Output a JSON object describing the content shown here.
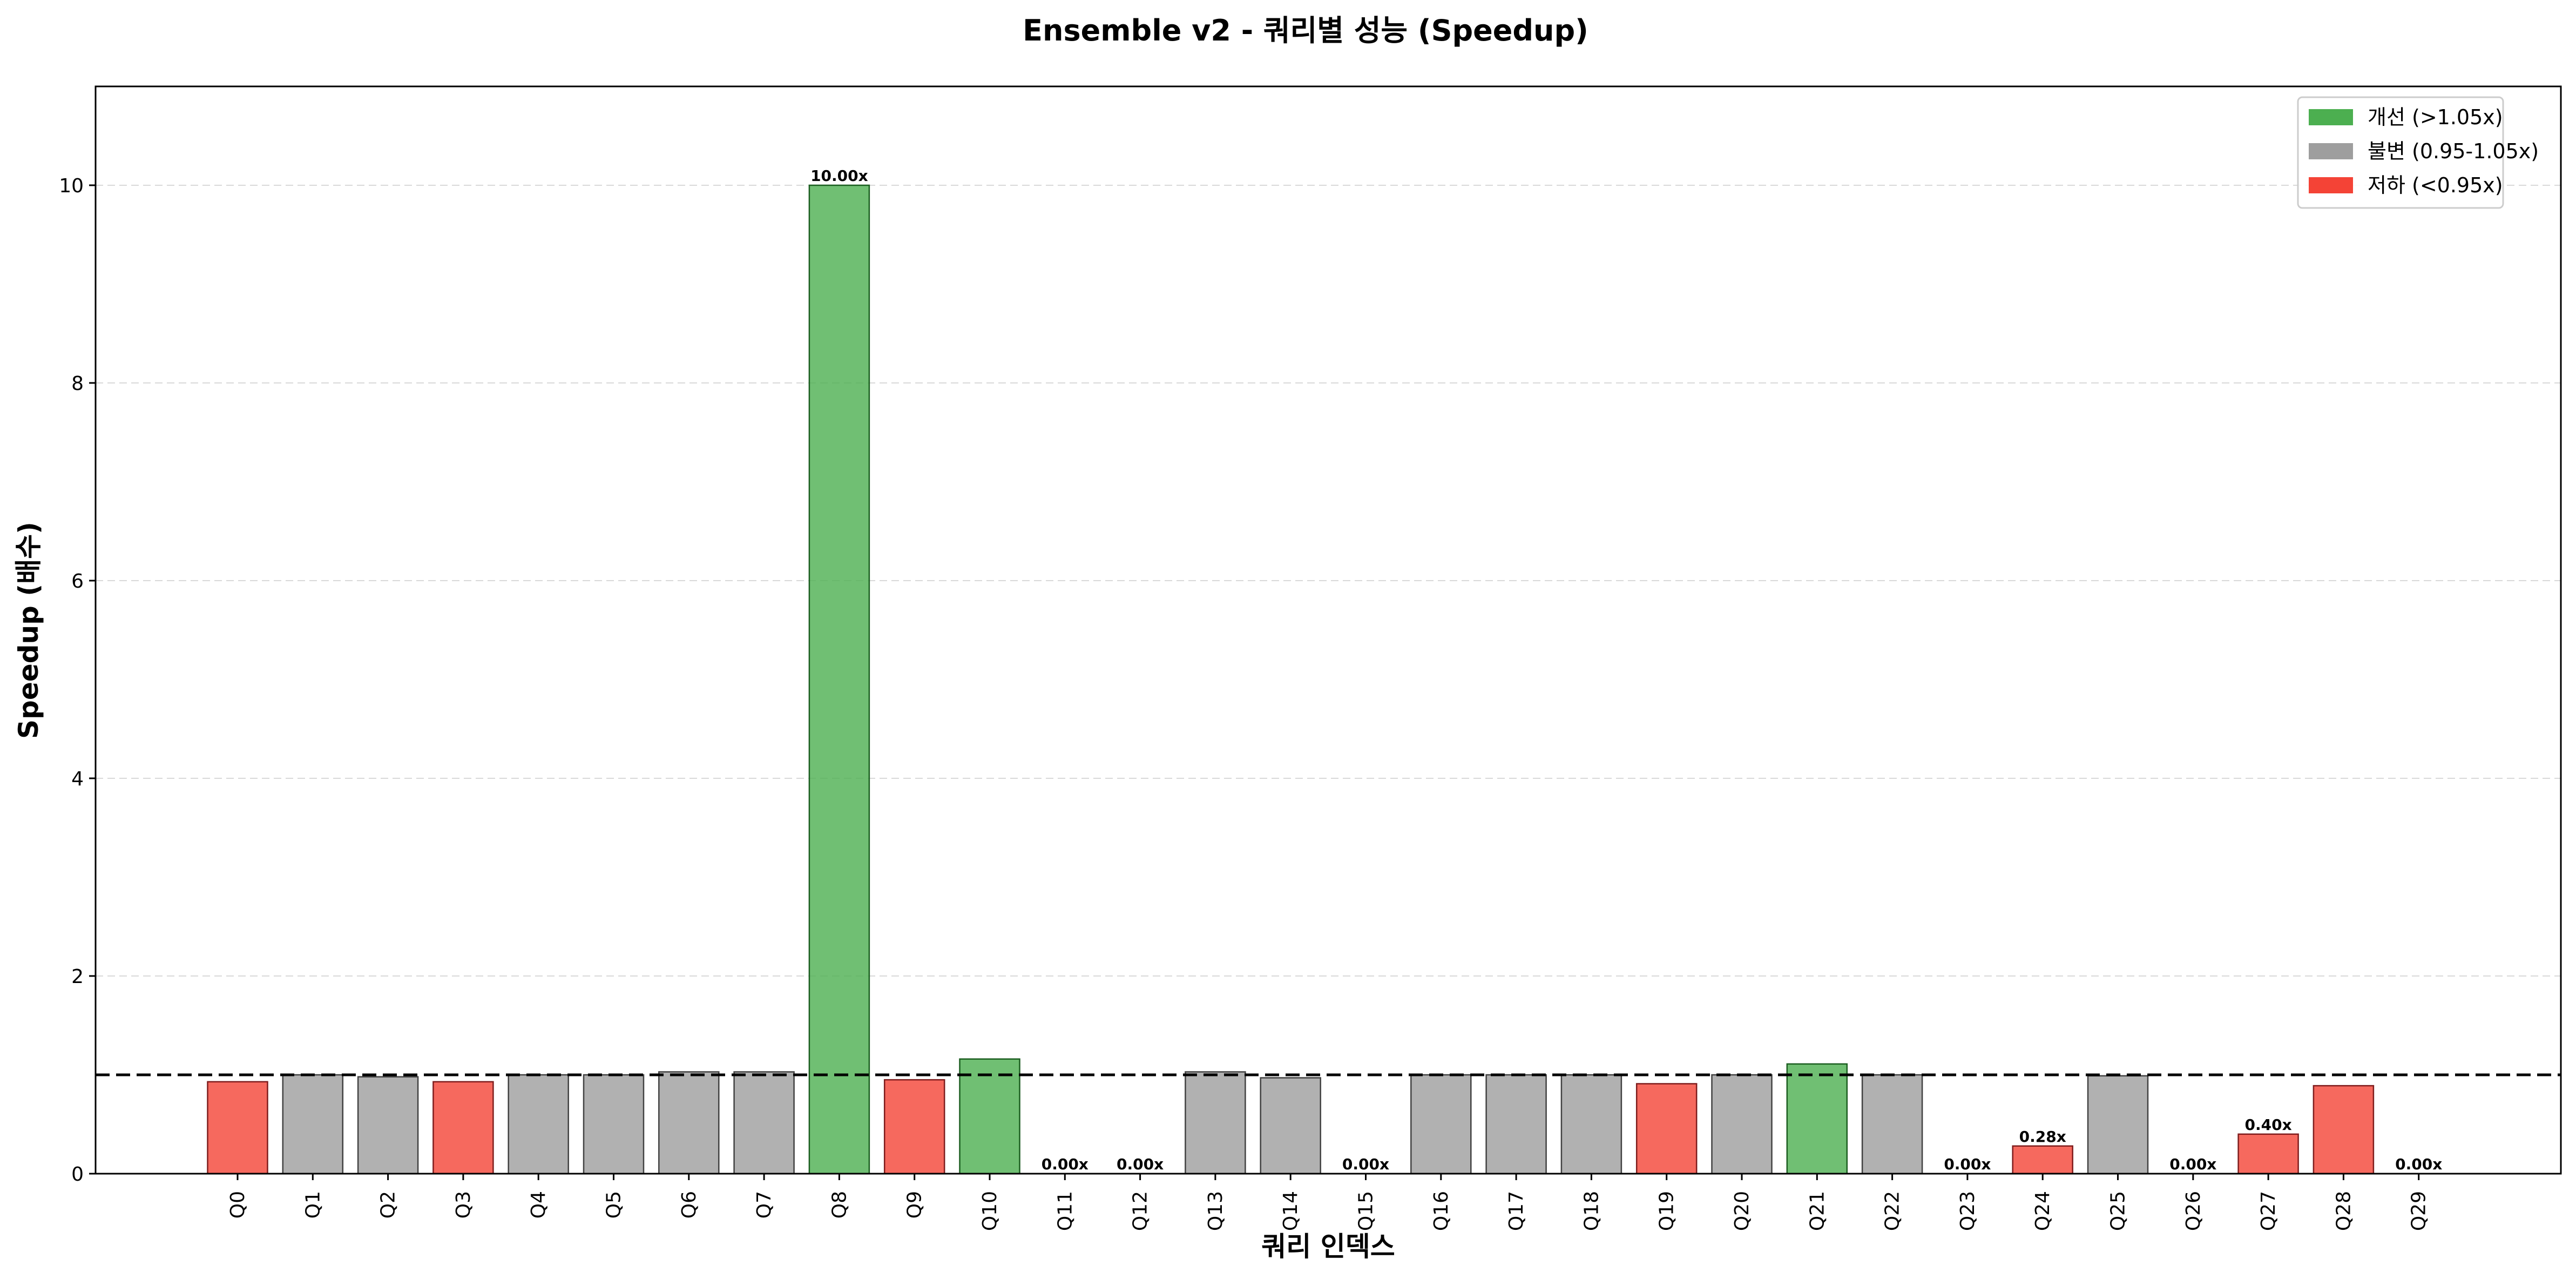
{
  "chart_data": {
    "type": "bar",
    "title": "Ensemble v2 - 쿼리별 성능 (Speedup)",
    "xlabel": "쿼리 인덱스",
    "ylabel": "Speedup (배수)",
    "ylim": [
      0,
      11
    ],
    "y_ticks": [
      0,
      2,
      4,
      6,
      8,
      10
    ],
    "y_tick_labels": [
      "0",
      "2",
      "4",
      "6",
      "8",
      "10"
    ],
    "grid": "y-dashed",
    "baseline": 1.0,
    "legend_position": "top-right",
    "categories": [
      "Q0",
      "Q1",
      "Q2",
      "Q3",
      "Q4",
      "Q5",
      "Q6",
      "Q7",
      "Q8",
      "Q9",
      "Q10",
      "Q11",
      "Q12",
      "Q13",
      "Q14",
      "Q15",
      "Q16",
      "Q17",
      "Q18",
      "Q19",
      "Q20",
      "Q21",
      "Q22",
      "Q23",
      "Q24",
      "Q25",
      "Q26",
      "Q27",
      "Q28",
      "Q29"
    ],
    "values": [
      0.93,
      1.0,
      0.98,
      0.93,
      1.0,
      1.0,
      1.03,
      1.03,
      10.0,
      0.95,
      1.16,
      0.0,
      0.0,
      1.03,
      0.97,
      0.0,
      1.0,
      1.0,
      1.0,
      0.91,
      1.0,
      1.11,
      1.0,
      0.0,
      0.28,
      0.99,
      0.0,
      0.4,
      0.89,
      0.0
    ],
    "bar_class": [
      "degraded",
      "unchanged",
      "unchanged",
      "degraded",
      "unchanged",
      "unchanged",
      "unchanged",
      "unchanged",
      "improved",
      "degraded",
      "improved",
      "degraded",
      "degraded",
      "unchanged",
      "unchanged",
      "degraded",
      "unchanged",
      "unchanged",
      "unchanged",
      "degraded",
      "unchanged",
      "improved",
      "unchanged",
      "degraded",
      "degraded",
      "unchanged",
      "degraded",
      "degraded",
      "degraded",
      "degraded"
    ],
    "data_labels": [
      {
        "index": 8,
        "text": "10.00x"
      },
      {
        "index": 11,
        "text": "0.00x"
      },
      {
        "index": 12,
        "text": "0.00x"
      },
      {
        "index": 15,
        "text": "0.00x"
      },
      {
        "index": 23,
        "text": "0.00x"
      },
      {
        "index": 24,
        "text": "0.28x"
      },
      {
        "index": 26,
        "text": "0.00x"
      },
      {
        "index": 27,
        "text": "0.40x"
      },
      {
        "index": 29,
        "text": "0.00x"
      }
    ],
    "legend": [
      {
        "key": "improved",
        "label": "개선 (>1.05x)",
        "color": "#4caf50"
      },
      {
        "key": "unchanged",
        "label": "불변 (0.95-1.05x)",
        "color": "#9e9e9e"
      },
      {
        "key": "degraded",
        "label": "저하 (<0.95x)",
        "color": "#f44336"
      }
    ]
  }
}
